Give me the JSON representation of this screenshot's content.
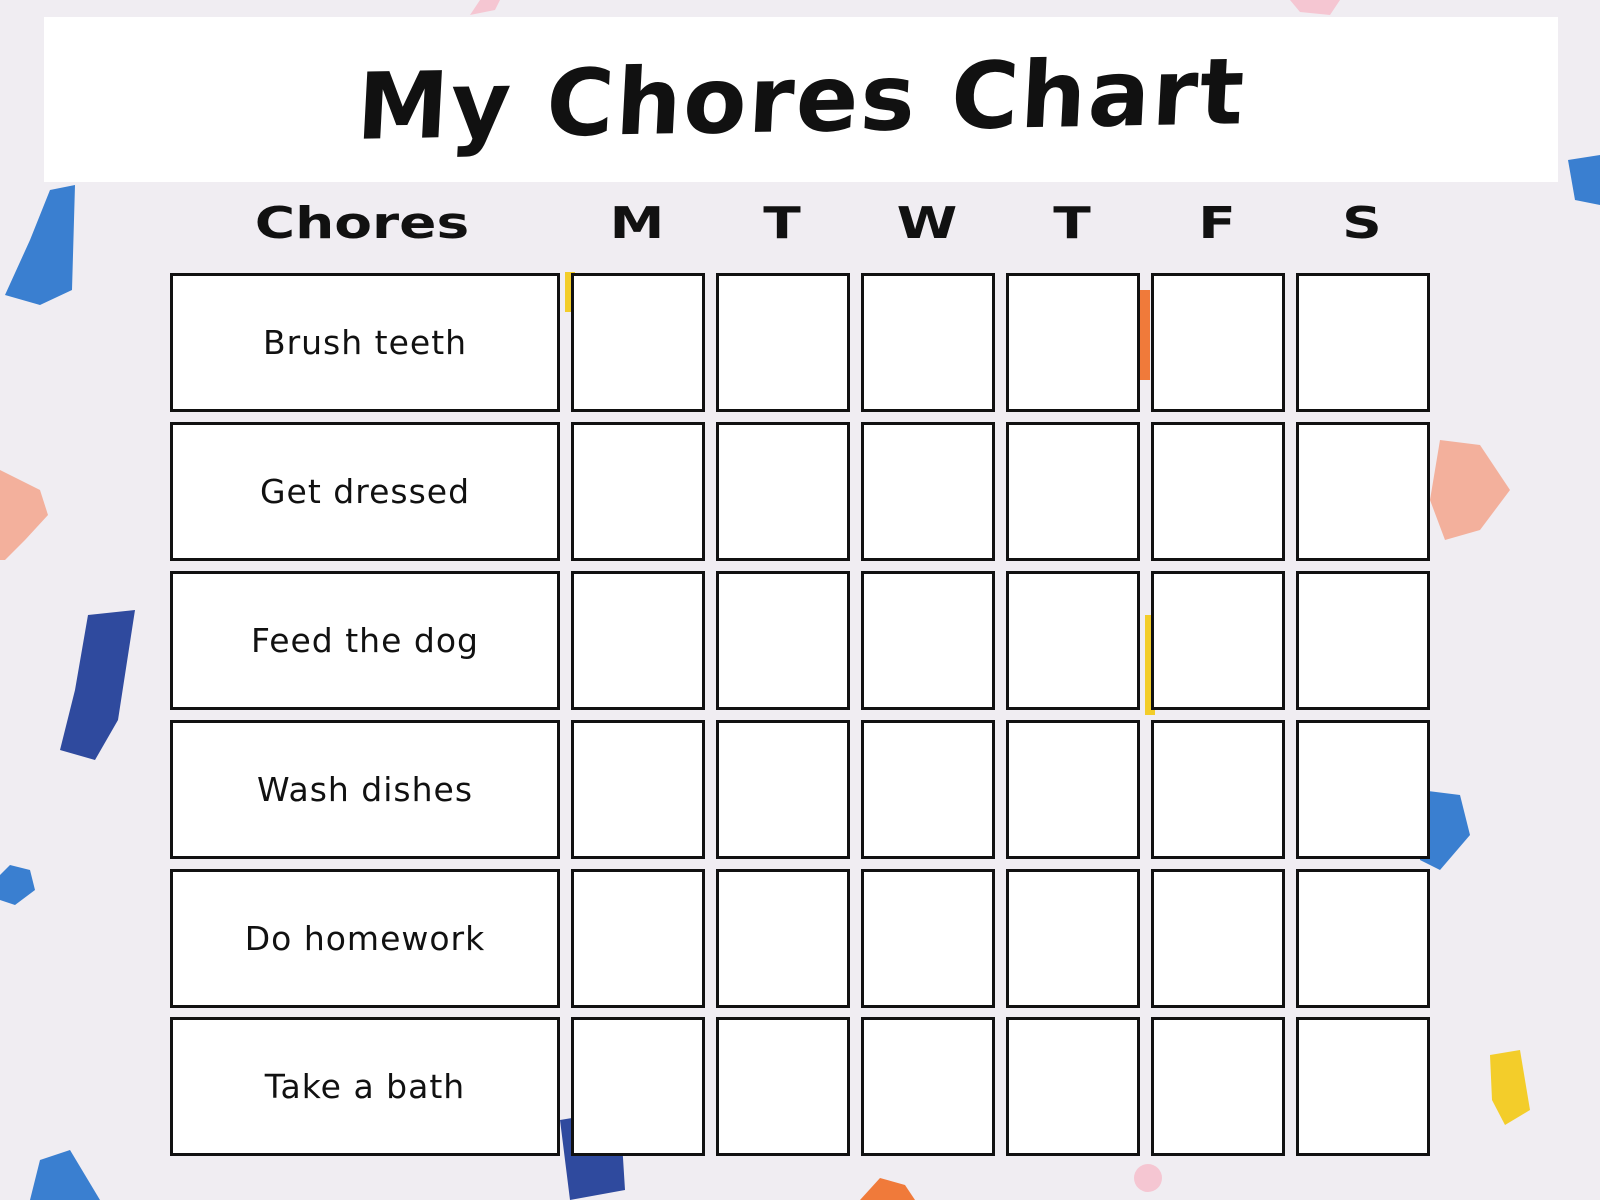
{
  "title": "My Chores Chart",
  "headers": {
    "chores": "Chores",
    "days": [
      "M",
      "T",
      "W",
      "T",
      "F",
      "S"
    ]
  },
  "chores": [
    "Brush teeth",
    "Get dressed",
    "Feed the dog",
    "Wash dishes",
    "Do homework",
    "Take a bath"
  ],
  "checked": [
    [
      false,
      false,
      false,
      false,
      false,
      false
    ],
    [
      false,
      false,
      false,
      false,
      false,
      false
    ],
    [
      false,
      false,
      false,
      false,
      false,
      false
    ],
    [
      false,
      false,
      false,
      false,
      false,
      false
    ],
    [
      false,
      false,
      false,
      false,
      false,
      false
    ],
    [
      false,
      false,
      false,
      false,
      false,
      false
    ]
  ],
  "colors": {
    "background": "#f0edf2",
    "blue": "#3a7fd0",
    "navy": "#2f4a9e",
    "peach": "#f3b09c",
    "orange": "#f07a3a",
    "yellow": "#f3cd2a",
    "pink": "#f5c6d2"
  }
}
